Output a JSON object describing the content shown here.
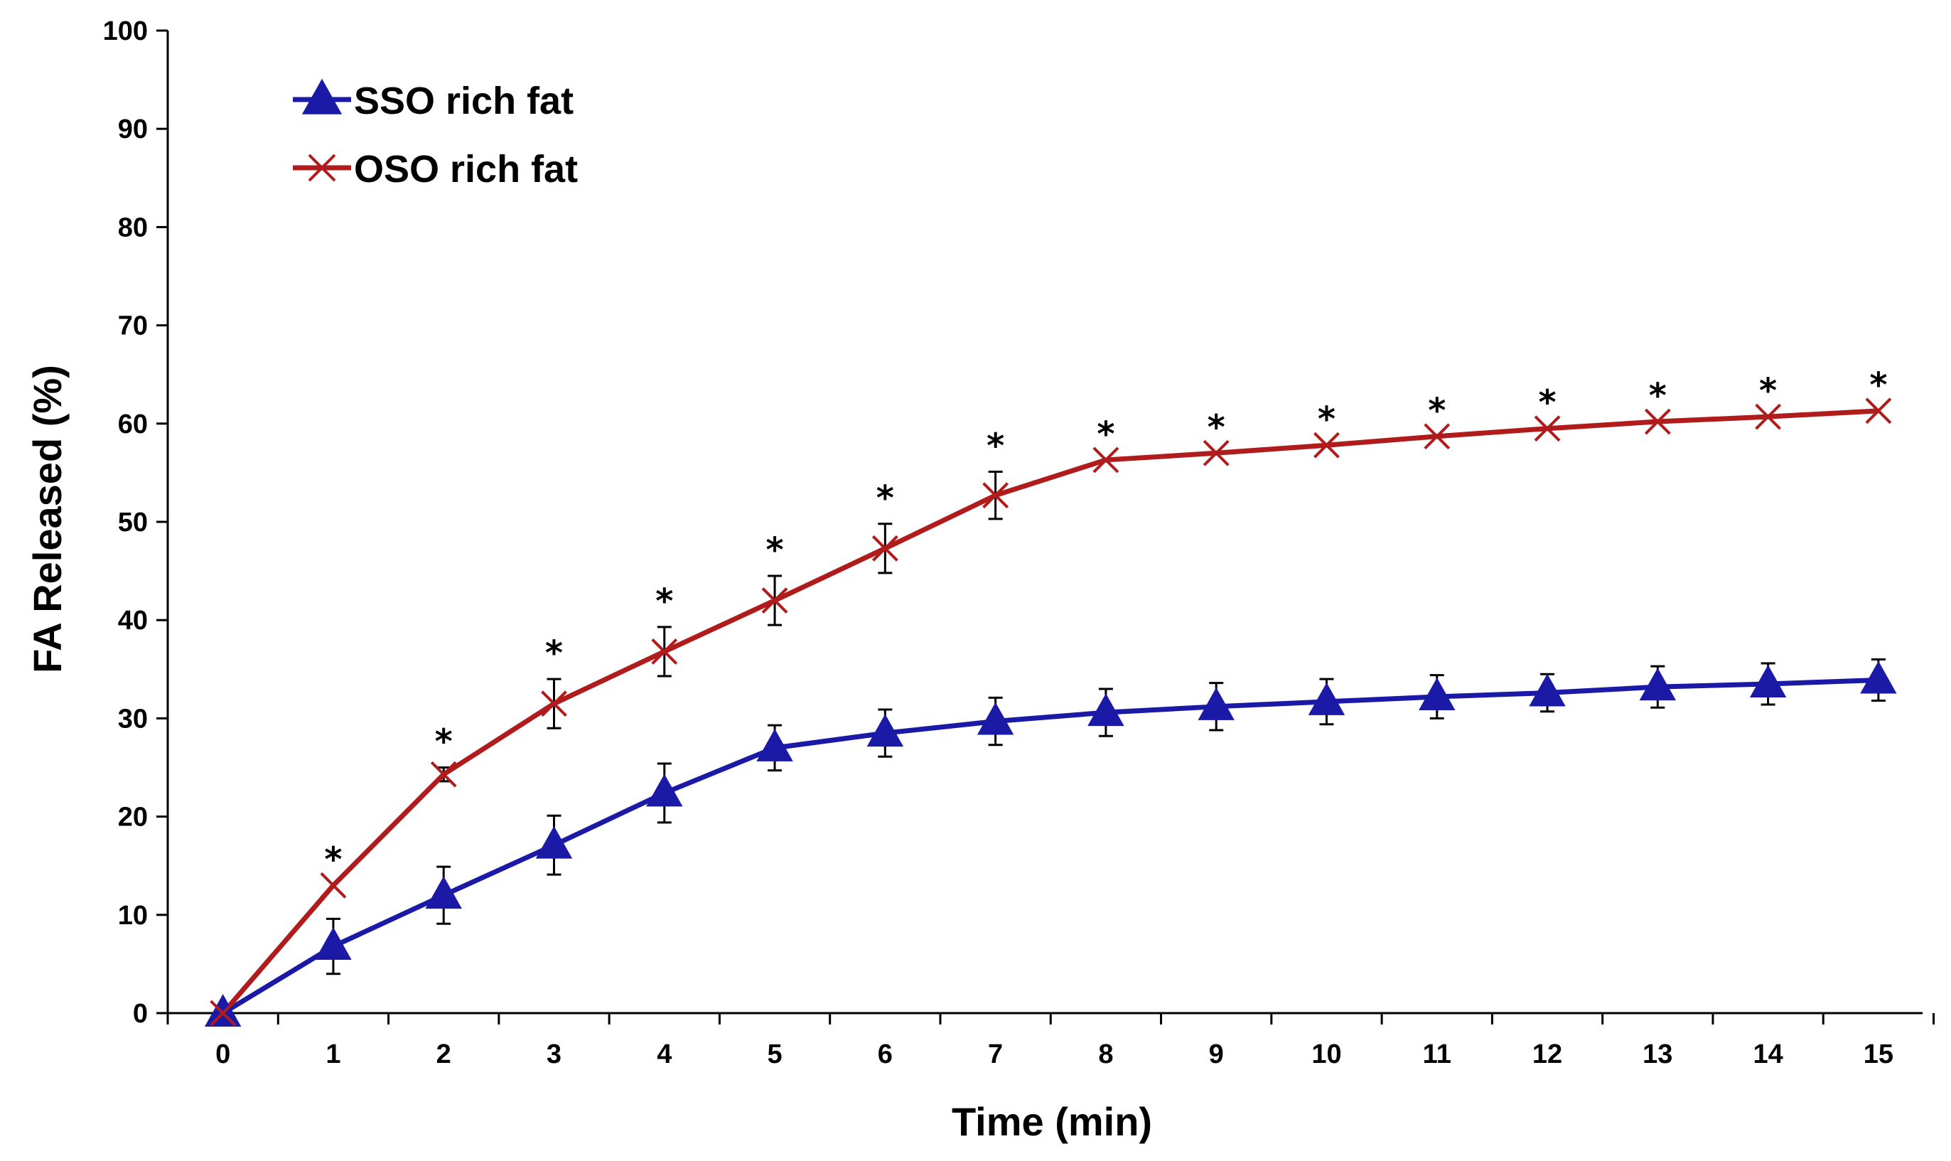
{
  "chart_data": {
    "type": "line",
    "title": "",
    "xlabel": "Time (min)",
    "ylabel": "FA Released (%)",
    "xlim": [
      -0.5,
      15.4
    ],
    "ylim": [
      0,
      100
    ],
    "x_ticks": [
      "0",
      "1",
      "2",
      "3",
      "4",
      "5",
      "6",
      "7",
      "8",
      "9",
      "10",
      "11",
      "12",
      "13",
      "14",
      "15"
    ],
    "y_ticks": [
      "0",
      "10",
      "20",
      "30",
      "40",
      "50",
      "60",
      "70",
      "80",
      "90",
      "100"
    ],
    "x": [
      0,
      1,
      2,
      3,
      4,
      5,
      6,
      7,
      8,
      9,
      10,
      11,
      12,
      13,
      14,
      15
    ],
    "legend_position": "top-left",
    "grid": false,
    "significance_marker": "*",
    "series": [
      {
        "name": "SSO rich fat",
        "color": "#1a1aa6",
        "marker": "triangle",
        "values": [
          0,
          6.8,
          12.0,
          17.1,
          22.4,
          27.0,
          28.5,
          29.7,
          30.6,
          31.2,
          31.7,
          32.2,
          32.6,
          33.2,
          33.5,
          33.9
        ],
        "errors": [
          0,
          2.8,
          2.9,
          3.0,
          3.0,
          2.3,
          2.4,
          2.4,
          2.4,
          2.4,
          2.3,
          2.2,
          1.9,
          2.1,
          2.1,
          2.1
        ]
      },
      {
        "name": "OSO rich fat",
        "color": "#b01c1c",
        "marker": "x",
        "values": [
          0,
          13.0,
          24.3,
          31.5,
          36.8,
          42.0,
          47.3,
          52.7,
          56.3,
          57.0,
          57.8,
          58.7,
          59.5,
          60.2,
          60.7,
          61.3
        ],
        "errors": [
          0,
          0,
          0.7,
          2.5,
          2.5,
          2.5,
          2.5,
          2.4,
          0,
          0,
          0,
          0,
          0,
          0,
          0,
          0
        ],
        "significant": [
          false,
          true,
          true,
          true,
          true,
          true,
          true,
          true,
          true,
          true,
          true,
          true,
          true,
          true,
          true,
          true
        ]
      }
    ]
  }
}
